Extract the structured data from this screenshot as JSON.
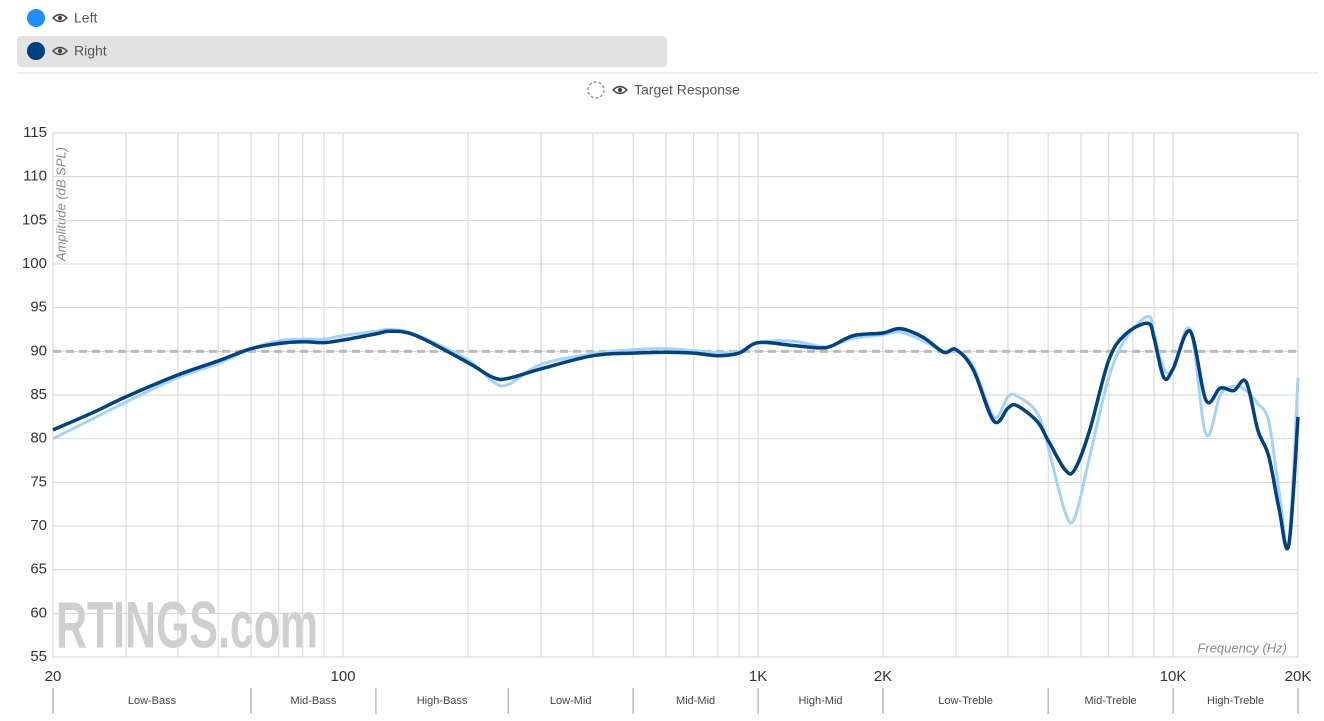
{
  "chart_data": {
    "type": "line",
    "x_label": "Frequency (Hz)",
    "y_label": "Amplitude (dB SPL)",
    "watermark": "RTINGS.com",
    "xscale": "log",
    "grid": true,
    "xlim": [
      20,
      20000
    ],
    "ylim": [
      55,
      115
    ],
    "yticks": [
      55,
      60,
      65,
      70,
      75,
      80,
      85,
      90,
      95,
      100,
      105,
      110,
      115
    ],
    "xticks": [
      20,
      100,
      {
        "value": 1000,
        "label": "1K"
      },
      {
        "value": 2000,
        "label": "2K"
      },
      {
        "value": 10000,
        "label": "10K"
      },
      {
        "value": 20000,
        "label": "20K"
      }
    ],
    "xgrid": [
      30,
      40,
      50,
      60,
      70,
      80,
      90,
      200,
      300,
      400,
      500,
      600,
      700,
      800,
      900,
      3000,
      4000,
      5000,
      6000,
      7000,
      8000,
      9000
    ],
    "bands": {
      "edges": [
        20,
        60,
        120,
        250,
        500,
        1000,
        2000,
        5000,
        10000,
        20000
      ],
      "labels": [
        "Low-Bass",
        "Mid-Bass",
        "High-Bass",
        "Low-Mid",
        "Mid-Mid",
        "High-Mid",
        "Low-Treble",
        "Mid-Treble",
        "High-Treble"
      ]
    },
    "target": {
      "label": "Target Response",
      "value": 90,
      "color": "#bbbbbb"
    },
    "x": [
      20,
      25,
      30,
      40,
      50,
      60,
      70,
      80,
      90,
      100,
      120,
      130,
      150,
      200,
      230,
      250,
      300,
      400,
      500,
      600,
      700,
      800,
      900,
      1000,
      1200,
      1400,
      1500,
      1700,
      2000,
      2200,
      2500,
      2800,
      3000,
      3300,
      3700,
      4000,
      4200,
      4700,
      5000,
      5500,
      5800,
      6300,
      7000,
      7700,
      8700,
      9000,
      9500,
      10000,
      11000,
      12000,
      13000,
      14000,
      15000,
      16000,
      17000,
      18000,
      19000,
      20000
    ],
    "series": [
      {
        "name": "Left",
        "color": "#1e8fff",
        "line_color": "#a6d3f5",
        "values": [
          80,
          82.3,
          84.2,
          87,
          88.6,
          90.3,
          91.2,
          91.4,
          91.4,
          91.8,
          92.3,
          92.5,
          91.9,
          89,
          86.5,
          86.2,
          88.5,
          89.7,
          90.2,
          90.3,
          90.1,
          89.8,
          90,
          91,
          91.2,
          90.6,
          90.6,
          91.5,
          91.9,
          92.2,
          91.2,
          90,
          90.1,
          88.3,
          82.5,
          84.8,
          84.9,
          83,
          79,
          71.5,
          71,
          78,
          87,
          91.5,
          94,
          92,
          88,
          88,
          92.5,
          80.5,
          85,
          86,
          85.5,
          84,
          82,
          74,
          68,
          87
        ]
      },
      {
        "name": "Right",
        "color": "#003f7f",
        "line_color": "#00427f",
        "values": [
          81,
          83,
          84.8,
          87.3,
          88.9,
          90.3,
          90.9,
          91.1,
          91,
          91.3,
          92,
          92.3,
          91.8,
          88.7,
          87,
          86.9,
          88,
          89.5,
          89.8,
          89.9,
          89.8,
          89.5,
          89.8,
          91,
          90.7,
          90.4,
          90.6,
          91.8,
          92.1,
          92.6,
          91.6,
          89.9,
          90.2,
          87.9,
          82,
          83.5,
          83.8,
          82,
          79.8,
          76.4,
          76.5,
          81,
          89,
          92,
          93.2,
          91.5,
          87,
          88,
          92.3,
          84.4,
          85.8,
          85.5,
          86.5,
          81,
          78,
          72,
          67.8,
          82.5
        ]
      }
    ]
  }
}
